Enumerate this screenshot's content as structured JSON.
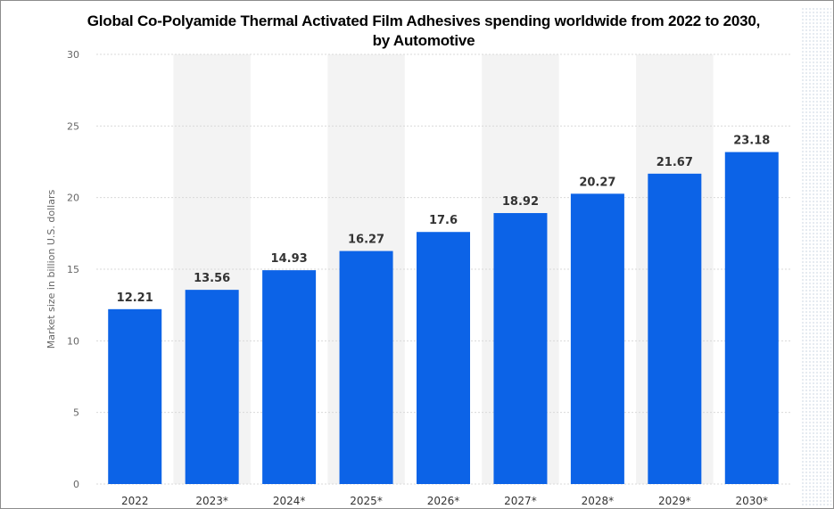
{
  "chart_data": {
    "type": "bar",
    "title_line1": "Global Co-Polyamide Thermal Activated Film Adhesives spending worldwide from 2022 to 2030,",
    "title_line2": "by Automotive",
    "categories": [
      "2022",
      "2023*",
      "2024*",
      "2025*",
      "2026*",
      "2027*",
      "2028*",
      "2029*",
      "2030*"
    ],
    "values": [
      12.21,
      13.56,
      14.93,
      16.27,
      17.6,
      18.92,
      20.27,
      21.67,
      23.18
    ],
    "value_labels": [
      "12.21",
      "13.56",
      "14.93",
      "16.27",
      "17.6",
      "18.92",
      "20.27",
      "21.67",
      "23.18"
    ],
    "ylabel": "Market size in billion U.S. dollars",
    "xlabel": "",
    "ylim": [
      0,
      30
    ],
    "yticks": [
      "0",
      "5",
      "10",
      "15",
      "20",
      "25",
      "30"
    ],
    "grid": true,
    "colors": {
      "bar": "#0c63e7",
      "band": "#f3f3f3",
      "grid": "#d9d9d9"
    }
  }
}
